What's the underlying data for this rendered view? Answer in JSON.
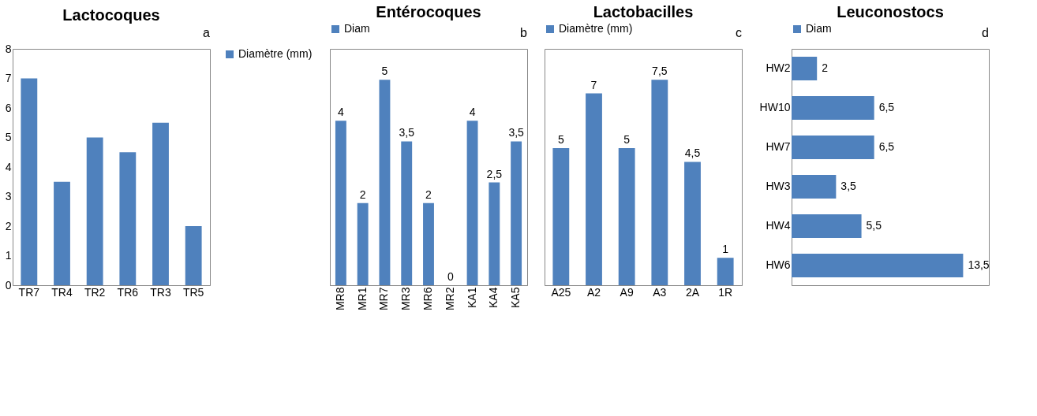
{
  "chart_data": [
    {
      "type": "bar",
      "title": "Lactocoques",
      "categories": [
        "TR7",
        "TR4",
        "TR2",
        "TR6",
        "TR3",
        "TR5"
      ],
      "series": [
        {
          "name": "Diamètre (mm)",
          "color": "#4f81bd",
          "values": [
            7,
            3.5,
            5,
            4.5,
            5.5,
            2
          ]
        }
      ],
      "ylim": [
        0,
        8
      ],
      "yticks": [
        0,
        1,
        2,
        3,
        4,
        5,
        6,
        7,
        8
      ],
      "grid": false,
      "legend": "right",
      "annotations": [
        "a"
      ]
    },
    {
      "type": "bar",
      "title": "Entérocoques",
      "categories": [
        "MR8",
        "MR1",
        "MR7",
        "MR3",
        "MR6",
        "MR2",
        "KA1",
        "KA4",
        "KA5"
      ],
      "series": [
        {
          "name": "Diam",
          "color": "#4f81bd",
          "values": [
            4,
            2,
            5,
            3.5,
            2,
            0,
            4,
            2.5,
            3.5
          ],
          "value_labels": [
            "4",
            "2",
            "5",
            "3,5",
            "2",
            "0",
            "4",
            "2,5",
            "3,5"
          ]
        }
      ],
      "grid": false,
      "legend": "top",
      "tick_labels": "x",
      "annotations": [
        "b"
      ]
    },
    {
      "type": "bar",
      "title": "Lactobacilles",
      "categories": [
        "A25",
        "A2",
        "A9",
        "A3",
        "2A",
        "1R"
      ],
      "series": [
        {
          "name": "Diamètre (mm)",
          "color": "#4f81bd",
          "values": [
            5,
            7,
            5,
            7.5,
            4.5,
            1
          ],
          "value_labels": [
            "5",
            "7",
            "5",
            "7,5",
            "4,5",
            "1"
          ]
        }
      ],
      "grid": false,
      "legend": "top",
      "tick_labels": "x",
      "annotations": [
        "c"
      ]
    },
    {
      "type": "bar",
      "orientation": "horizontal",
      "title": "Leuconostocs",
      "categories": [
        "HW2",
        "HW10",
        "HW7",
        "HW3",
        "HW4",
        "HW6"
      ],
      "series": [
        {
          "name": "Diam",
          "color": "#4f81bd",
          "values": [
            2,
            6.5,
            6.5,
            3.5,
            5.5,
            13.5
          ],
          "value_labels": [
            "2",
            "6,5",
            "6,5",
            "3,5",
            "5,5",
            "13,5"
          ]
        }
      ],
      "grid": false,
      "legend": "top",
      "tick_labels": "y",
      "annotations": [
        "d"
      ]
    }
  ]
}
